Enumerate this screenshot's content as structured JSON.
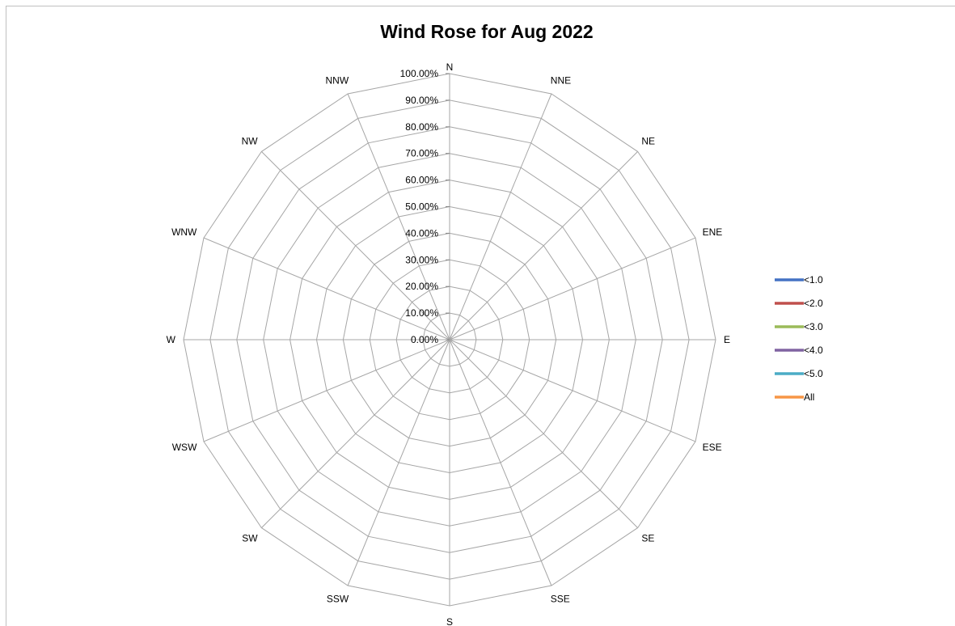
{
  "chart_data": {
    "type": "radar",
    "title": "Wind Rose for Aug 2022",
    "directions": [
      "N",
      "NNE",
      "NE",
      "ENE",
      "E",
      "ESE",
      "SE",
      "SSE",
      "S",
      "SSW",
      "SW",
      "WSW",
      "W",
      "WNW",
      "NW",
      "NNW"
    ],
    "radial_ticks": [
      "0.00%",
      "10.00%",
      "20.00%",
      "30.00%",
      "40.00%",
      "50.00%",
      "60.00%",
      "70.00%",
      "80.00%",
      "90.00%",
      "100.00%"
    ],
    "rlim": [
      0,
      100
    ],
    "grid": true,
    "legend_position": "right",
    "series": [
      {
        "name": "<1.0",
        "color": "#4472c4",
        "values": [
          0,
          0,
          0,
          0,
          0,
          0,
          0,
          0,
          0,
          0,
          0,
          0,
          0,
          0,
          0,
          0
        ]
      },
      {
        "name": "<2.0",
        "color": "#c0504d",
        "values": [
          0,
          0,
          0,
          0,
          0,
          0,
          0,
          0,
          0,
          0,
          0,
          0,
          0,
          0,
          0,
          0
        ]
      },
      {
        "name": "<3.0",
        "color": "#9bbb59",
        "values": [
          0,
          0,
          0,
          0,
          0,
          0,
          0,
          0,
          0,
          0,
          0,
          0,
          0,
          0,
          0,
          0
        ]
      },
      {
        "name": "<4.0",
        "color": "#8064a2",
        "values": [
          0,
          0,
          0,
          0,
          0,
          0,
          0,
          0,
          0,
          0,
          0,
          0,
          0,
          0,
          0,
          0
        ]
      },
      {
        "name": "<5.0",
        "color": "#4bacc6",
        "values": [
          0,
          0,
          0,
          0,
          0,
          0,
          0,
          0,
          0,
          0,
          0,
          0,
          0,
          0,
          0,
          0
        ]
      },
      {
        "name": "All",
        "color": "#f79646",
        "values": [
          0,
          0,
          0,
          0,
          0,
          0,
          0,
          0,
          0,
          0,
          0,
          0,
          0,
          0,
          0,
          0
        ]
      }
    ]
  }
}
